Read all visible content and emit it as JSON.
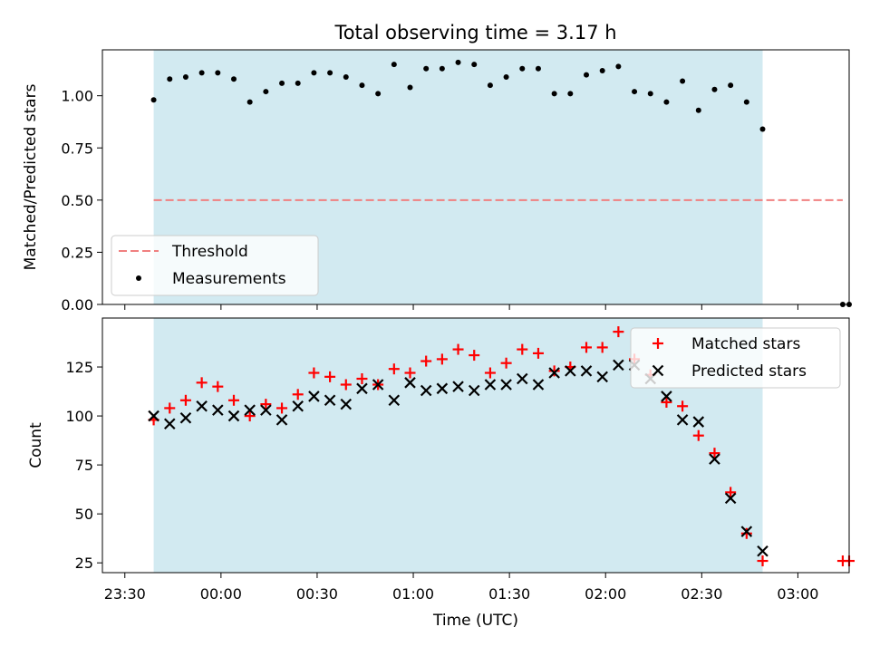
{
  "chart_data": [
    {
      "type": "scatter",
      "title": "Total observing time = 3.17 h",
      "ylabel": "Matched/Predicted stars",
      "xlabel": "",
      "ylim": [
        0,
        1.22
      ],
      "yticks": [
        "0.00",
        "0.25",
        "0.50",
        "0.75",
        "1.00"
      ],
      "yticks_values": [
        0,
        0.25,
        0.5,
        0.75,
        1.0
      ],
      "observing_window_minutes": [
        9,
        199
      ],
      "threshold": {
        "name": "Threshold",
        "value": 0.5,
        "x_range_minutes": [
          9,
          224
        ],
        "color": "#f08080"
      },
      "series": [
        {
          "name": "Measurements",
          "color": "#000000",
          "x_minutes": [
            9,
            14,
            19,
            24,
            29,
            34,
            39,
            44,
            49,
            54,
            59,
            64,
            69,
            74,
            79,
            84,
            89,
            94,
            99,
            104,
            109,
            114,
            119,
            124,
            129,
            134,
            139,
            144,
            149,
            154,
            159,
            164,
            169,
            174,
            179,
            184,
            189,
            194,
            199,
            224,
            226
          ],
          "values": [
            0.98,
            1.08,
            1.09,
            1.11,
            1.11,
            1.08,
            0.97,
            1.02,
            1.06,
            1.06,
            1.11,
            1.11,
            1.09,
            1.05,
            1.01,
            1.15,
            1.04,
            1.13,
            1.13,
            1.16,
            1.15,
            1.05,
            1.09,
            1.13,
            1.13,
            1.01,
            1.01,
            1.1,
            1.12,
            1.14,
            1.02,
            1.01,
            0.97,
            1.07,
            0.93,
            1.03,
            1.05,
            0.97,
            0.84,
            0.0,
            0.0
          ]
        }
      ],
      "legend": "lower-left",
      "shaded_color": "#add8e6"
    },
    {
      "type": "scatter",
      "title": "",
      "xlabel": "Time (UTC)",
      "ylabel": "Count",
      "ylim": [
        20,
        150
      ],
      "yticks": [
        "25",
        "50",
        "75",
        "100",
        "125"
      ],
      "yticks_values": [
        25,
        50,
        75,
        100,
        125
      ],
      "xlim_minutes": [
        -7,
        226
      ],
      "xticks": [
        "23:30",
        "00:00",
        "00:30",
        "01:00",
        "01:30",
        "02:00",
        "02:30",
        "03:00"
      ],
      "xticks_minutes": [
        0,
        30,
        60,
        90,
        120,
        150,
        180,
        210
      ],
      "observing_window_minutes": [
        9,
        199
      ],
      "series": [
        {
          "name": "Matched stars",
          "color": "#ff0000",
          "marker": "plus",
          "x_minutes": [
            9,
            14,
            19,
            24,
            29,
            34,
            39,
            44,
            49,
            54,
            59,
            64,
            69,
            74,
            79,
            84,
            89,
            94,
            99,
            104,
            109,
            114,
            119,
            124,
            129,
            134,
            139,
            144,
            149,
            154,
            159,
            164,
            169,
            174,
            179,
            184,
            189,
            194,
            199,
            224,
            226
          ],
          "values": [
            98,
            104,
            108,
            117,
            115,
            108,
            100,
            106,
            104,
            111,
            122,
            120,
            116,
            119,
            116,
            124,
            122,
            128,
            129,
            134,
            131,
            122,
            127,
            134,
            132,
            123,
            125,
            135,
            135,
            143,
            129,
            121,
            107,
            105,
            90,
            81,
            61,
            40,
            26,
            26,
            26
          ]
        },
        {
          "name": "Predicted stars",
          "color": "#000000",
          "marker": "x",
          "x_minutes": [
            9,
            14,
            19,
            24,
            29,
            34,
            39,
            44,
            49,
            54,
            59,
            64,
            69,
            74,
            79,
            84,
            89,
            94,
            99,
            104,
            109,
            114,
            119,
            124,
            129,
            134,
            139,
            144,
            149,
            154,
            159,
            164,
            169,
            174,
            179,
            184,
            189,
            194,
            199
          ],
          "values": [
            100,
            96,
            99,
            105,
            103,
            100,
            103,
            103,
            98,
            105,
            110,
            108,
            106,
            114,
            116,
            108,
            117,
            113,
            114,
            115,
            113,
            116,
            116,
            119,
            116,
            122,
            123,
            123,
            120,
            126,
            126,
            119,
            110,
            98,
            97,
            78,
            58,
            41,
            31
          ]
        }
      ],
      "legend": "upper-right",
      "shaded_color": "#add8e6"
    }
  ]
}
